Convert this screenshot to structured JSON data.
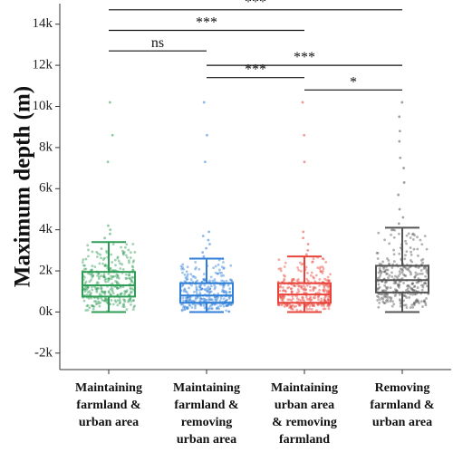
{
  "chart_data": {
    "type": "boxplot",
    "ylabel": "Maximum depth (m)",
    "ylim": [
      -2800,
      15000
    ],
    "y_ticks": [
      {
        "value": -2000,
        "label": "-2k"
      },
      {
        "value": 0,
        "label": "0k"
      },
      {
        "value": 2000,
        "label": "2k"
      },
      {
        "value": 4000,
        "label": "4k"
      },
      {
        "value": 6000,
        "label": "6k"
      },
      {
        "value": 8000,
        "label": "8k"
      },
      {
        "value": 10000,
        "label": "10k"
      },
      {
        "value": 12000,
        "label": "12k"
      },
      {
        "value": 14000,
        "label": "14k"
      }
    ],
    "categories": [
      "Maintaining farmland & urban area",
      "Maintaining farmland & removing urban area",
      "Maintaining urban area & removing farmland",
      "Removing farmland & urban area"
    ],
    "category_label_lines": [
      [
        "Maintaining",
        "farmland &",
        "urban area"
      ],
      [
        "Maintaining",
        "farmland &",
        "removing",
        "urban area"
      ],
      [
        "Maintaining",
        "urban area",
        "& removing",
        "farmland"
      ],
      [
        "Removing",
        "farmland &",
        "urban area"
      ]
    ],
    "boxes": [
      {
        "min": 0,
        "q1": 750,
        "median": 1300,
        "q3": 1950,
        "max": 3400,
        "outliers": [
          3600,
          3800,
          4000,
          4200,
          7300,
          8600,
          10200
        ]
      },
      {
        "min": 0,
        "q1": 450,
        "median": 800,
        "q3": 1400,
        "max": 2600,
        "outliers": [
          2700,
          2900,
          3100,
          3300,
          3500,
          3700,
          3900,
          7300,
          8600,
          10200
        ]
      },
      {
        "min": 0,
        "q1": 450,
        "median": 850,
        "q3": 1400,
        "max": 2700,
        "outliers": [
          2800,
          3000,
          3300,
          3600,
          3900,
          7300,
          8600,
          10200
        ]
      },
      {
        "min": 0,
        "q1": 950,
        "median": 1550,
        "q3": 2250,
        "max": 4100,
        "outliers": [
          4300,
          4600,
          5000,
          5700,
          6300,
          7000,
          7500,
          8300,
          8800,
          9500,
          10200
        ]
      }
    ],
    "colors": [
      "#2e9e56",
      "#2f7ed8",
      "#e8443a",
      "#555555"
    ],
    "significance": [
      {
        "from": 0,
        "to": 3,
        "y": 14700,
        "label": "***"
      },
      {
        "from": 0,
        "to": 2,
        "y": 13700,
        "label": "***"
      },
      {
        "from": 0,
        "to": 1,
        "y": 12700,
        "label": "ns"
      },
      {
        "from": 1,
        "to": 3,
        "y": 12000,
        "label": "***"
      },
      {
        "from": 1,
        "to": 2,
        "y": 11400,
        "label": "***"
      },
      {
        "from": 2,
        "to": 3,
        "y": 10800,
        "label": "*"
      }
    ],
    "grid": false,
    "legend": "none"
  }
}
